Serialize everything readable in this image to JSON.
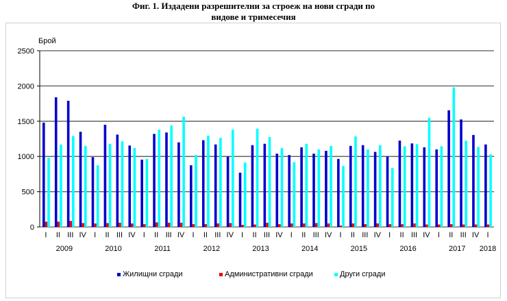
{
  "title": {
    "line1": "Фиг. 1. Издадени разрешителни за строеж на нови сгради по",
    "line2": "видове и тримесечия"
  },
  "chart_data": {
    "type": "bar",
    "title": "Фиг. 1. Издадени разрешителни за строеж на нови сгради по видове и тримесечия",
    "xlabel": "",
    "ylabel": "Брой",
    "ylim": [
      0,
      2500
    ],
    "yticks": [
      0,
      500,
      1000,
      1500,
      2000,
      2500
    ],
    "grid": true,
    "legend_position": "bottom",
    "years": [
      {
        "label": "2009",
        "start": 0,
        "count": 4
      },
      {
        "label": "2010",
        "start": 4,
        "count": 4
      },
      {
        "label": "2011",
        "start": 8,
        "count": 4
      },
      {
        "label": "2012",
        "start": 12,
        "count": 4
      },
      {
        "label": "2013",
        "start": 16,
        "count": 4
      },
      {
        "label": "2014",
        "start": 20,
        "count": 4
      },
      {
        "label": "2015",
        "start": 24,
        "count": 4
      },
      {
        "label": "2016",
        "start": 28,
        "count": 4
      },
      {
        "label": "2017",
        "start": 32,
        "count": 4
      },
      {
        "label": "2018",
        "start": 36,
        "count": 1
      }
    ],
    "categories": [
      "I",
      "II",
      "III",
      "IV",
      "I",
      "II",
      "III",
      "IV",
      "I",
      "II",
      "III",
      "IV",
      "I",
      "II",
      "III",
      "IV",
      "I",
      "II",
      "III",
      "IV",
      "I",
      "II",
      "III",
      "IV",
      "I",
      "II",
      "III",
      "IV",
      "I",
      "II",
      "III",
      "IV",
      "I",
      "II",
      "III",
      "IV",
      "I"
    ],
    "series": [
      {
        "name": "Жилищни сгради",
        "color": "#0000cc",
        "values": [
          1480,
          1840,
          1790,
          1350,
          990,
          1450,
          1310,
          1155,
          955,
          1320,
          1340,
          1200,
          875,
          1230,
          1170,
          1000,
          770,
          1160,
          1180,
          1040,
          1020,
          1130,
          1040,
          1080,
          965,
          1150,
          1160,
          1065,
          1000,
          1225,
          1185,
          1130,
          1100,
          1655,
          1525,
          1305,
          1170
        ]
      },
      {
        "name": "Административни сгради",
        "color": "#ee0000",
        "values": [
          75,
          75,
          85,
          55,
          50,
          55,
          60,
          50,
          40,
          65,
          60,
          60,
          40,
          40,
          50,
          55,
          30,
          35,
          60,
          40,
          50,
          50,
          55,
          50,
          20,
          50,
          40,
          50,
          40,
          40,
          50,
          35,
          35,
          40,
          35,
          35,
          35
        ]
      },
      {
        "name": "Други сгради",
        "color": "#00ffff",
        "values": [
          980,
          1170,
          1290,
          1150,
          875,
          1180,
          1215,
          1120,
          965,
          1380,
          1440,
          1565,
          1020,
          1295,
          1265,
          1380,
          915,
          1395,
          1275,
          1120,
          920,
          1180,
          1100,
          1150,
          865,
          1285,
          1100,
          1160,
          835,
          1145,
          1175,
          1550,
          1145,
          1980,
          1225,
          1135,
          1030
        ]
      }
    ]
  },
  "legend": {
    "items": [
      {
        "label": "Жилищни  сгради",
        "color": "#0000cc"
      },
      {
        "label": "Административни сгради",
        "color": "#ee0000"
      },
      {
        "label": "Други сгради",
        "color": "#00ffff"
      }
    ]
  }
}
